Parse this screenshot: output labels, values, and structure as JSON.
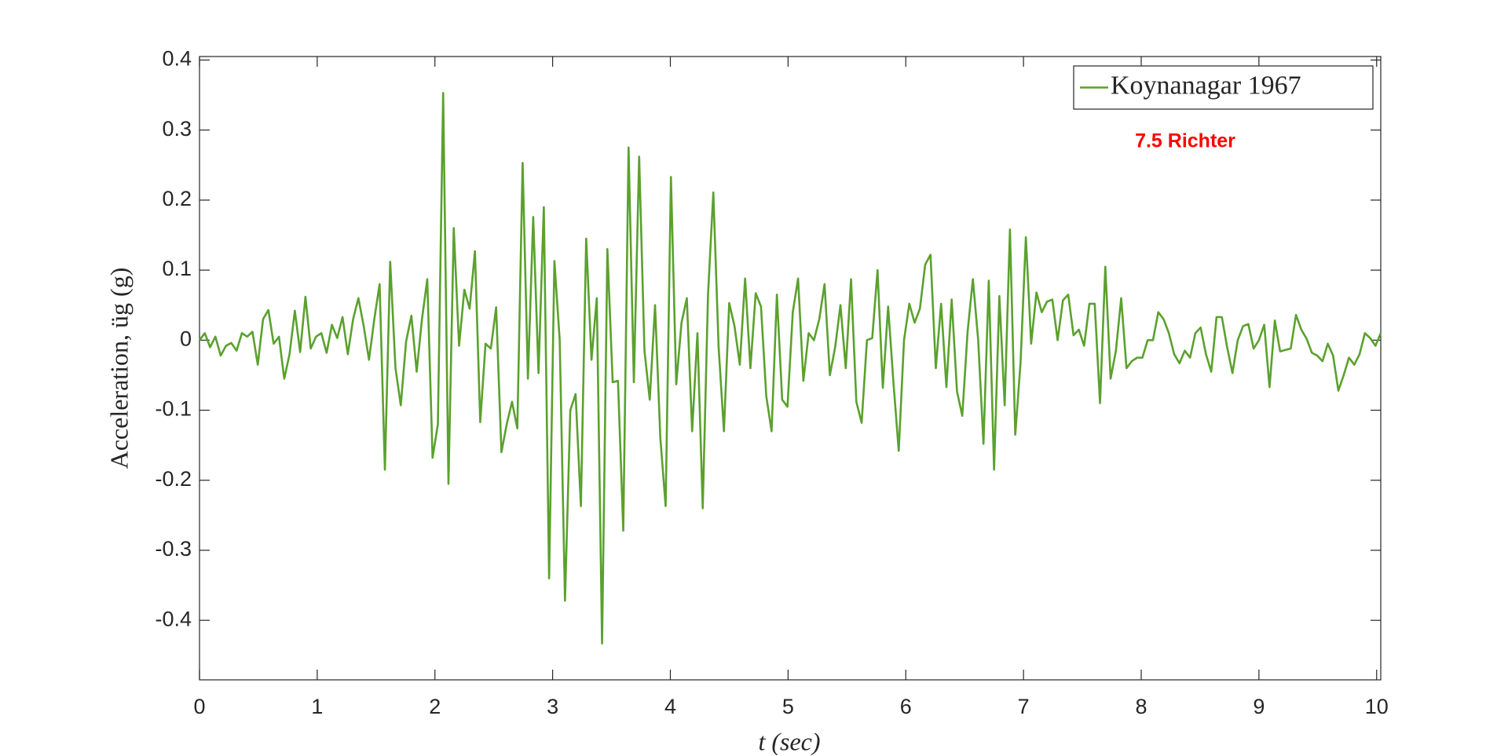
{
  "chart_data": {
    "type": "line",
    "xlabel": "t (sec)",
    "ylabel": "Acceleration, üg (g)",
    "annotation": "7.5 Richter",
    "annotation_color": "#ff0000",
    "legend": "upper right",
    "grid": false,
    "xlim": [
      0,
      10.035
    ],
    "ylim": [
      -0.485,
      0.405
    ],
    "xticks": [
      0,
      1,
      2,
      3,
      4,
      5,
      6,
      7,
      8,
      9,
      10
    ],
    "yticks": [
      -0.4,
      -0.3,
      -0.2,
      -0.1,
      0,
      0.1,
      0.2,
      0.3,
      0.4
    ],
    "x": [
      0,
      0.045,
      0.09,
      0.135,
      0.18,
      0.225,
      0.27,
      0.315,
      0.36,
      0.405,
      0.45,
      0.495,
      0.54,
      0.585,
      0.63,
      0.675,
      0.72,
      0.765,
      0.81,
      0.855,
      0.9,
      0.945,
      0.99,
      1.035,
      1.08,
      1.125,
      1.17,
      1.215,
      1.26,
      1.305,
      1.35,
      1.395,
      1.44,
      1.485,
      1.53,
      1.575,
      1.62,
      1.665,
      1.71,
      1.755,
      1.8,
      1.845,
      1.89,
      1.935,
      1.98,
      2.025,
      2.07,
      2.115,
      2.16,
      2.205,
      2.25,
      2.295,
      2.34,
      2.385,
      2.43,
      2.475,
      2.52,
      2.565,
      2.61,
      2.655,
      2.7,
      2.745,
      2.79,
      2.835,
      2.88,
      2.925,
      2.97,
      3.015,
      3.06,
      3.105,
      3.15,
      3.195,
      3.24,
      3.285,
      3.33,
      3.375,
      3.42,
      3.465,
      3.51,
      3.555,
      3.6,
      3.645,
      3.69,
      3.735,
      3.78,
      3.825,
      3.87,
      3.915,
      3.96,
      4.005,
      4.05,
      4.095,
      4.14,
      4.185,
      4.23,
      4.275,
      4.32,
      4.365,
      4.41,
      4.455,
      4.5,
      4.545,
      4.59,
      4.635,
      4.68,
      4.725,
      4.77,
      4.815,
      4.86,
      4.905,
      4.95,
      4.995,
      5.04,
      5.085,
      5.13,
      5.175,
      5.22,
      5.265,
      5.31,
      5.355,
      5.4,
      5.445,
      5.49,
      5.535,
      5.58,
      5.625,
      5.67,
      5.715,
      5.76,
      5.805,
      5.85,
      5.895,
      5.94,
      5.985,
      6.03,
      6.075,
      6.12,
      6.165,
      6.21,
      6.255,
      6.3,
      6.345,
      6.39,
      6.435,
      6.48,
      6.525,
      6.57,
      6.615,
      6.66,
      6.705,
      6.75,
      6.795,
      6.84,
      6.885,
      6.93,
      6.975,
      7.02,
      7.065,
      7.11,
      7.155,
      7.2,
      7.245,
      7.29,
      7.335,
      7.38,
      7.425,
      7.47,
      7.515,
      7.56,
      7.605,
      7.65,
      7.695,
      7.74,
      7.785,
      7.83,
      7.875,
      7.92,
      7.965,
      8.01,
      8.055,
      8.1,
      8.145,
      8.19,
      8.235,
      8.28,
      8.325,
      8.37,
      8.415,
      8.46,
      8.505,
      8.55,
      8.595,
      8.64,
      8.685,
      8.73,
      8.775,
      8.82,
      8.865,
      8.91,
      8.955,
      9.0,
      9.045,
      9.09,
      9.135,
      9.18,
      9.225,
      9.27,
      9.315,
      9.36,
      9.405,
      9.45,
      9.495,
      9.54,
      9.585,
      9.63,
      9.675,
      9.72,
      9.765,
      9.81,
      9.855,
      9.9,
      9.945,
      9.99,
      10.035
    ],
    "series": [
      {
        "name": "Koynanagar 1967",
        "color": "#5ba12e",
        "values": [
          0,
          0.01,
          -0.01,
          0.005,
          -0.022,
          -0.008,
          -0.004,
          -0.015,
          0.01,
          0.005,
          0.012,
          -0.035,
          0.03,
          0.043,
          -0.005,
          0.005,
          -0.055,
          -0.02,
          0.042,
          -0.017,
          0.062,
          -0.012,
          0.005,
          0.01,
          -0.018,
          0.022,
          0.003,
          0.033,
          -0.02,
          0.03,
          0.06,
          0.02,
          -0.028,
          0.03,
          0.08,
          -0.185,
          0.112,
          -0.04,
          -0.093,
          -0.002,
          0.035,
          -0.045,
          0.03,
          0.087,
          -0.168,
          -0.12,
          0.353,
          -0.205,
          0.16,
          -0.008,
          0.072,
          0.045,
          0.127,
          -0.117,
          -0.005,
          -0.012,
          0.047,
          -0.16,
          -0.12,
          -0.088,
          -0.126,
          0.253,
          -0.055,
          0.176,
          -0.047,
          0.19,
          -0.34,
          0.113,
          0.0,
          -0.372,
          -0.1,
          -0.077,
          -0.237,
          0.145,
          -0.028,
          0.06,
          -0.433,
          0.13,
          -0.06,
          -0.058,
          -0.272,
          0.275,
          -0.06,
          0.262,
          -0.015,
          -0.085,
          0.05,
          -0.14,
          -0.237,
          0.233,
          -0.063,
          0.025,
          0.06,
          -0.13,
          0.01,
          -0.24,
          0.065,
          0.211,
          -0.01,
          -0.13,
          0.053,
          0.02,
          -0.035,
          0.088,
          -0.04,
          0.067,
          0.048,
          -0.08,
          -0.13,
          0.065,
          -0.085,
          -0.095,
          0.04,
          0.088,
          -0.058,
          0.01,
          0.0,
          0.03,
          0.08,
          -0.05,
          -0.01,
          0.05,
          -0.04,
          0.087,
          -0.088,
          -0.118,
          0.0,
          0.003,
          0.1,
          -0.068,
          0.048,
          -0.06,
          -0.158,
          0.0,
          0.052,
          0.025,
          0.045,
          0.108,
          0.122,
          -0.04,
          0.052,
          -0.067,
          0.058,
          -0.073,
          -0.108,
          0.012,
          0.087,
          0.0,
          -0.148,
          0.085,
          -0.185,
          0.063,
          -0.093,
          0.158,
          -0.135,
          -0.032,
          0.147,
          -0.005,
          0.068,
          0.04,
          0.055,
          0.058,
          0.0,
          0.057,
          0.065,
          0.007,
          0.015,
          -0.008,
          0.052,
          0.052,
          -0.09,
          0.105,
          -0.055,
          -0.015,
          0.06,
          -0.04,
          -0.03,
          -0.025,
          -0.025,
          0.0,
          0.0,
          0.04,
          0.03,
          0.01,
          -0.02,
          -0.033,
          -0.015,
          -0.025,
          0.01,
          0.018,
          -0.02,
          -0.045,
          0.033,
          0.033,
          -0.01,
          -0.047,
          0.0,
          0.02,
          0.023,
          -0.012,
          0.0,
          0.022,
          -0.067,
          0.028,
          -0.016,
          -0.014,
          -0.012,
          0.036,
          0.015,
          0.002,
          -0.018,
          -0.022,
          -0.03,
          -0.005,
          -0.022,
          -0.072,
          -0.05,
          -0.025,
          -0.035,
          -0.02,
          0.01,
          0.003,
          -0.008,
          0.01
        ]
      }
    ]
  }
}
